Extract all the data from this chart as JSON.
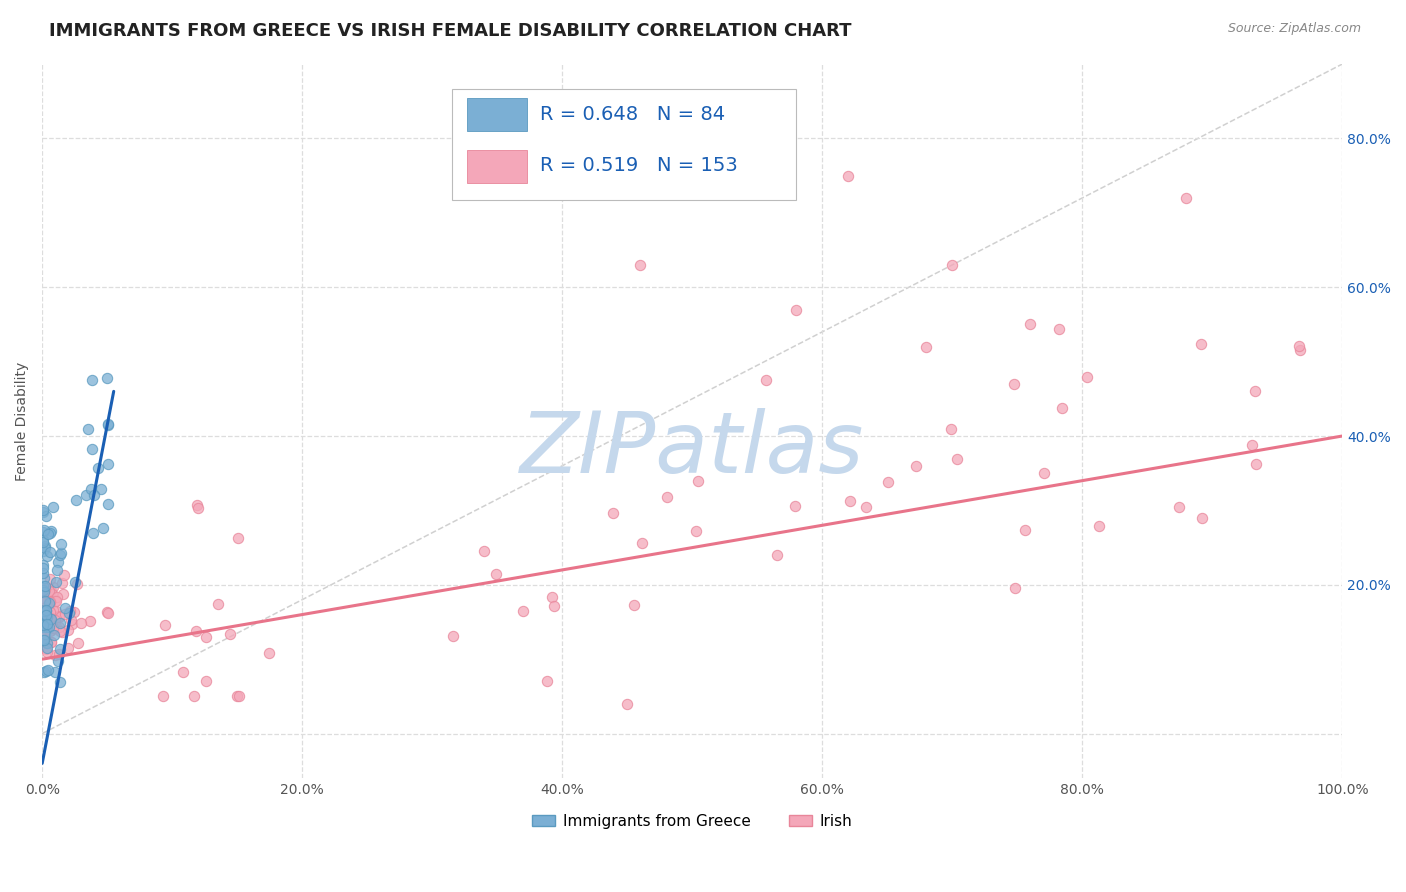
{
  "title": "IMMIGRANTS FROM GREECE VS IRISH FEMALE DISABILITY CORRELATION CHART",
  "source_text": "Source: ZipAtlas.com",
  "ylabel": "Female Disability",
  "xlim": [
    0,
    1.0
  ],
  "ylim": [
    -0.06,
    0.9
  ],
  "xticks": [
    0.0,
    0.2,
    0.4,
    0.6,
    0.8,
    1.0
  ],
  "yticks": [
    0.0,
    0.2,
    0.4,
    0.6,
    0.8
  ],
  "xticklabels": [
    "0.0%",
    "20.0%",
    "40.0%",
    "60.0%",
    "80.0%",
    "100.0%"
  ],
  "yticklabels_right": [
    "",
    "20.0%",
    "40.0%",
    "60.0%",
    "80.0%"
  ],
  "legend_entries": [
    {
      "label": "Immigrants from Greece",
      "R": "0.648",
      "N": "84"
    },
    {
      "label": "Irish",
      "R": "0.519",
      "N": "153"
    }
  ],
  "blue_line_x": [
    0.0,
    0.055
  ],
  "blue_line_y": [
    -0.04,
    0.46
  ],
  "pink_line_x": [
    0.0,
    1.0
  ],
  "pink_line_y": [
    0.1,
    0.4
  ],
  "diag_line_x": [
    0.0,
    1.0
  ],
  "diag_line_y": [
    0.0,
    0.9
  ],
  "scatter_blue_color": "#7bafd4",
  "scatter_pink_color": "#f4a7b9",
  "scatter_blue_edge": "#5a9ac0",
  "scatter_pink_edge": "#e8869a",
  "trend_blue_color": "#1a5fb4",
  "trend_pink_color": "#e8748a",
  "diag_color": "#c8c8c8",
  "legend_R_color": "#1a5fb4",
  "right_tick_color": "#1a5fb4",
  "background_color": "#ffffff",
  "grid_color": "#dddddd",
  "title_color": "#222222",
  "watermark_color": "#c5d8ec",
  "watermark_text": "ZIPatlas",
  "watermark_fontsize": 62,
  "title_fontsize": 13,
  "axis_label_fontsize": 10,
  "tick_fontsize": 10,
  "legend_fontsize": 14
}
